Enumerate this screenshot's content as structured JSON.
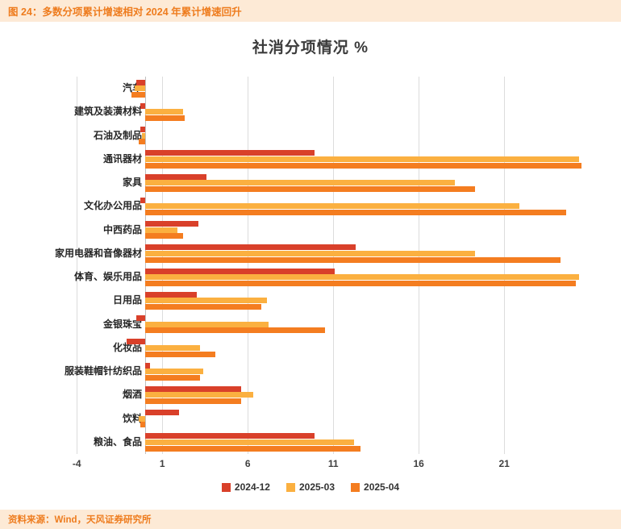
{
  "header": {
    "caption": "图 24：多数分项累计增速相对 2024 年累计增速回升"
  },
  "footer": {
    "source": "资料来源：Wind，天风证券研究所"
  },
  "colors": {
    "banner_background": "#fdead6",
    "banner_text": "#ee7c1e",
    "gridline": "#dcdcdc",
    "series_2024_12": "#d9402a",
    "series_2025_03": "#fbb040",
    "series_2025_04": "#f47d20"
  },
  "chart_data": {
    "type": "bar",
    "orientation": "horizontal",
    "title": "社消分项情况 %",
    "categories": [
      "汽车",
      "建筑及装潢材料",
      "石油及制品",
      "通讯器材",
      "家具",
      "文化办公用品",
      "中西药品",
      "家用电器和音像器材",
      "体育、娱乐用品",
      "日用品",
      "金银珠宝",
      "化妆品",
      "服装鞋帽针纺织品",
      "烟酒",
      "饮料",
      "粮油、食品"
    ],
    "series": [
      {
        "name": "2024-12",
        "color": "#d9402a",
        "values": [
          -0.5,
          -0.3,
          -0.3,
          9.9,
          3.6,
          -0.3,
          3.1,
          12.3,
          11.1,
          3.0,
          -0.5,
          -1.1,
          0.3,
          5.6,
          2.0,
          9.9
        ]
      },
      {
        "name": "2025-03",
        "color": "#fbb040",
        "values": [
          -0.6,
          2.2,
          -0.2,
          25.4,
          18.1,
          21.9,
          1.9,
          19.3,
          25.4,
          7.1,
          7.2,
          3.2,
          3.4,
          6.3,
          -0.4,
          12.2
        ]
      },
      {
        "name": "2025-04",
        "color": "#f47d20",
        "values": [
          -0.8,
          2.3,
          -0.4,
          25.5,
          19.3,
          24.6,
          2.2,
          24.3,
          25.2,
          6.8,
          10.5,
          4.1,
          3.2,
          5.6,
          -0.3,
          12.6
        ]
      }
    ],
    "x_ticks": [
      -4,
      1,
      6,
      11,
      16,
      21
    ],
    "xlim": [
      -4,
      25.8
    ],
    "grid": true,
    "legend_position": "bottom"
  }
}
